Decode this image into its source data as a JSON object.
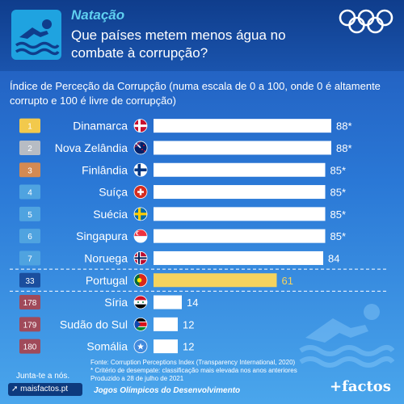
{
  "header": {
    "sport": "Natação",
    "headline": "Que países metem menos água no combate à corrupção?"
  },
  "subtitle": "Índice de Perceção da Corrupção (numa escala de 0 a 100, onde 0 é altamente corrupto e 100 é livre de corrupção)",
  "chart_data": {
    "type": "bar",
    "orientation": "horizontal",
    "xlim": [
      0,
      100
    ],
    "categories": [
      "Dinamarca",
      "Nova Zelândia",
      "Finlândia",
      "Suíça",
      "Suécia",
      "Singapura",
      "Noruega",
      "Portugal",
      "Síria",
      "Sudão do Sul",
      "Somália"
    ],
    "ranks": [
      "1",
      "2",
      "3",
      "4",
      "5",
      "6",
      "7",
      "33",
      "178",
      "179",
      "180"
    ],
    "values": [
      88,
      88,
      85,
      85,
      85,
      85,
      84,
      61,
      14,
      12,
      12
    ],
    "value_labels": [
      "88*",
      "88*",
      "85*",
      "85*",
      "85*",
      "85*",
      "84",
      "61",
      "14",
      "12",
      "12"
    ],
    "flags": [
      "denmark",
      "new-zealand",
      "finland",
      "switzerland",
      "sweden",
      "singapore",
      "norway",
      "portugal",
      "syria",
      "south-sudan",
      "somalia"
    ],
    "rank_colors": [
      "#f2c94c",
      "#b7bcc4",
      "#d48a52",
      "#4fa3e0",
      "#4fa3e0",
      "#4fa3e0",
      "#4fa3e0",
      "#1a4e9e",
      "#a04a5a",
      "#a04a5a",
      "#a04a5a"
    ],
    "bar_color": "#ffffff",
    "highlight_color": "#f4d35e",
    "highlight": "Portugal"
  },
  "footnotes": [
    "Fonte: Corruption Perceptions Index (Transparency International, 2020)",
    "* Critério de desempate: classificação mais elevada nos anos anteriores",
    "Produzido a 28 de julho de 2021"
  ],
  "footer": {
    "join": "Junta-te a nós.",
    "site": "maisfactos.pt",
    "games": "Jogos Olímpicos do Desenvolvimento",
    "brand": "+factos"
  }
}
